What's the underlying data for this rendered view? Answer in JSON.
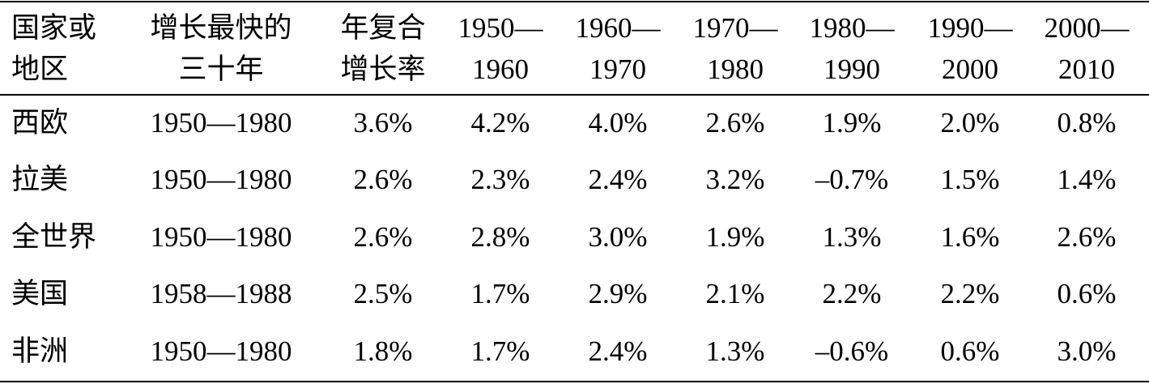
{
  "table": {
    "header": [
      [
        "国家或",
        "地区"
      ],
      [
        "增长最快的",
        "三十年"
      ],
      [
        "年复合",
        "增长率"
      ],
      [
        "1950—",
        "1960"
      ],
      [
        "1960—",
        "1970"
      ],
      [
        "1970—",
        "1980"
      ],
      [
        "1980—",
        "1990"
      ],
      [
        "1990—",
        "2000"
      ],
      [
        "2000—",
        "2010"
      ]
    ],
    "rows": [
      [
        "西欧",
        "1950—1980",
        "3.6%",
        "4.2%",
        "4.0%",
        "2.6%",
        "1.9%",
        "2.0%",
        "0.8%"
      ],
      [
        "拉美",
        "1950—1980",
        "2.6%",
        "2.3%",
        "2.4%",
        "3.2%",
        "–0.7%",
        "1.5%",
        "1.4%"
      ],
      [
        "全世界",
        "1950—1980",
        "2.6%",
        "2.8%",
        "3.0%",
        "1.9%",
        "1.3%",
        "1.6%",
        "2.6%"
      ],
      [
        "美国",
        "1958—1988",
        "2.5%",
        "1.7%",
        "2.9%",
        "2.1%",
        "2.2%",
        "2.2%",
        "0.6%"
      ],
      [
        "非洲",
        "1950—1980",
        "1.8%",
        "1.7%",
        "2.4%",
        "1.3%",
        "–0.6%",
        "0.6%",
        "3.0%"
      ]
    ]
  }
}
